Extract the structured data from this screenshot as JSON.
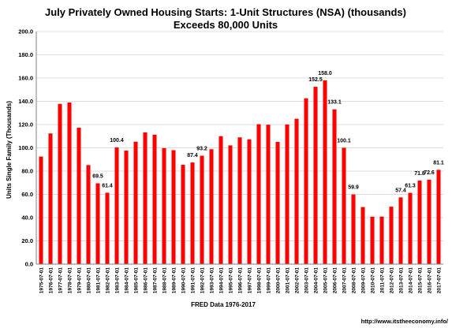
{
  "chart_data": {
    "type": "bar",
    "title": "July Privately Owned Housing Starts: 1-Unit Structures (NSA) (thousands)",
    "subtitle": "Exceeds 80,000 Units",
    "ylabel": "Units Single Family (Thousands)",
    "xlabel": "FRED  Data 1976-2017",
    "source": "http://www.itstheeconomy.info/",
    "ylim": [
      0,
      200
    ],
    "yticks": [
      "0.0",
      "20.0",
      "40.0",
      "60.0",
      "80.0",
      "100.0",
      "120.0",
      "140.0",
      "160.0",
      "180.0",
      "200.0"
    ],
    "grid": true,
    "legend": "none",
    "bar_color": "#ff0000",
    "categories": [
      "1975-07-01",
      "1976-07-01",
      "1977-07-01",
      "1978-07-01",
      "1979-07-01",
      "1980-07-01",
      "1981-07-01",
      "1982-07-01",
      "1983-07-01",
      "1984-07-01",
      "1985-07-01",
      "1986-07-01",
      "1987-07-01",
      "1988-07-01",
      "1989-07-01",
      "1990-07-01",
      "1991-07-01",
      "1992-07-01",
      "1993-07-01",
      "1994-07-01",
      "1995-07-01",
      "1996-07-01",
      "1997-07-01",
      "1998-07-01",
      "1999-07-01",
      "2000-07-01",
      "2001-07-01",
      "2002-07-01",
      "2003-07-01",
      "2004-07-01",
      "2005-07-01",
      "2006-07-01",
      "2007-07-01",
      "2008-07-01",
      "2009-07-01",
      "2010-07-01",
      "2011-07-01",
      "2012-07-01",
      "2013-07-01",
      "2014-07-01",
      "2015-07-01",
      "2016-07-01",
      "2017-07-01"
    ],
    "values": [
      92.5,
      112.4,
      137.8,
      139.0,
      117.3,
      85.2,
      69.5,
      61.4,
      100.4,
      97.6,
      105.3,
      113.3,
      111.3,
      99.8,
      98.0,
      85.4,
      87.4,
      93.2,
      98.8,
      110.0,
      102.1,
      109.0,
      107.3,
      120.3,
      119.9,
      105.1,
      120.1,
      125.0,
      142.6,
      152.5,
      158.0,
      133.1,
      100.1,
      59.9,
      49.1,
      40.8,
      40.9,
      49.4,
      57.4,
      61.3,
      71.8,
      72.6,
      81.1
    ],
    "data_labels": [
      {
        "category": "1981-07-01",
        "text": "69.5"
      },
      {
        "category": "1982-07-01",
        "text": "61.4"
      },
      {
        "category": "1983-07-01",
        "text": "100.4"
      },
      {
        "category": "1991-07-01",
        "text": "87.4"
      },
      {
        "category": "1992-07-01",
        "text": "93.2"
      },
      {
        "category": "2004-07-01",
        "text": "152.5"
      },
      {
        "category": "2005-07-01",
        "text": "158.0"
      },
      {
        "category": "2006-07-01",
        "text": "133.1"
      },
      {
        "category": "2007-07-01",
        "text": "100.1"
      },
      {
        "category": "2008-07-01",
        "text": "59.9"
      },
      {
        "category": "2013-07-01",
        "text": "57.4"
      },
      {
        "category": "2014-07-01",
        "text": "61.3"
      },
      {
        "category": "2015-07-01",
        "text": "71.8"
      },
      {
        "category": "2016-07-01",
        "text": "72.6"
      },
      {
        "category": "2017-07-01",
        "text": "81.1"
      }
    ]
  }
}
